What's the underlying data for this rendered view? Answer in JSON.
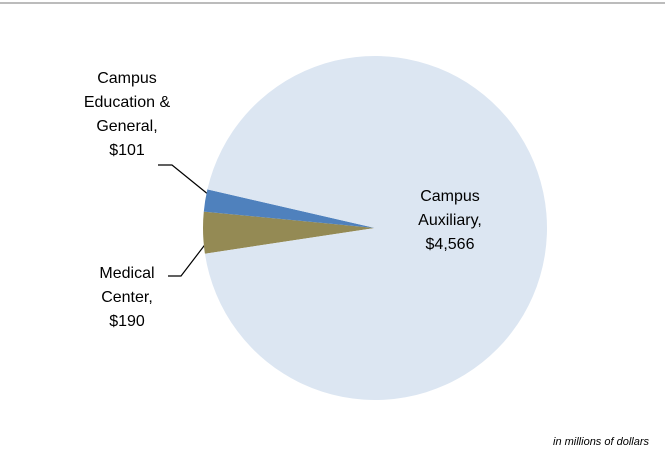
{
  "chart_data": {
    "type": "pie",
    "categories": [
      "Medical Center,",
      "Campus Education & General,",
      "Campus Auxiliary,"
    ],
    "values": [
      190,
      101,
      4566
    ],
    "value_labels": [
      "$190",
      "$101",
      "$4,566"
    ],
    "colors": [
      "#948a54",
      "#4f81bd",
      "#dce6f2"
    ],
    "note": "in millions of dollars"
  }
}
